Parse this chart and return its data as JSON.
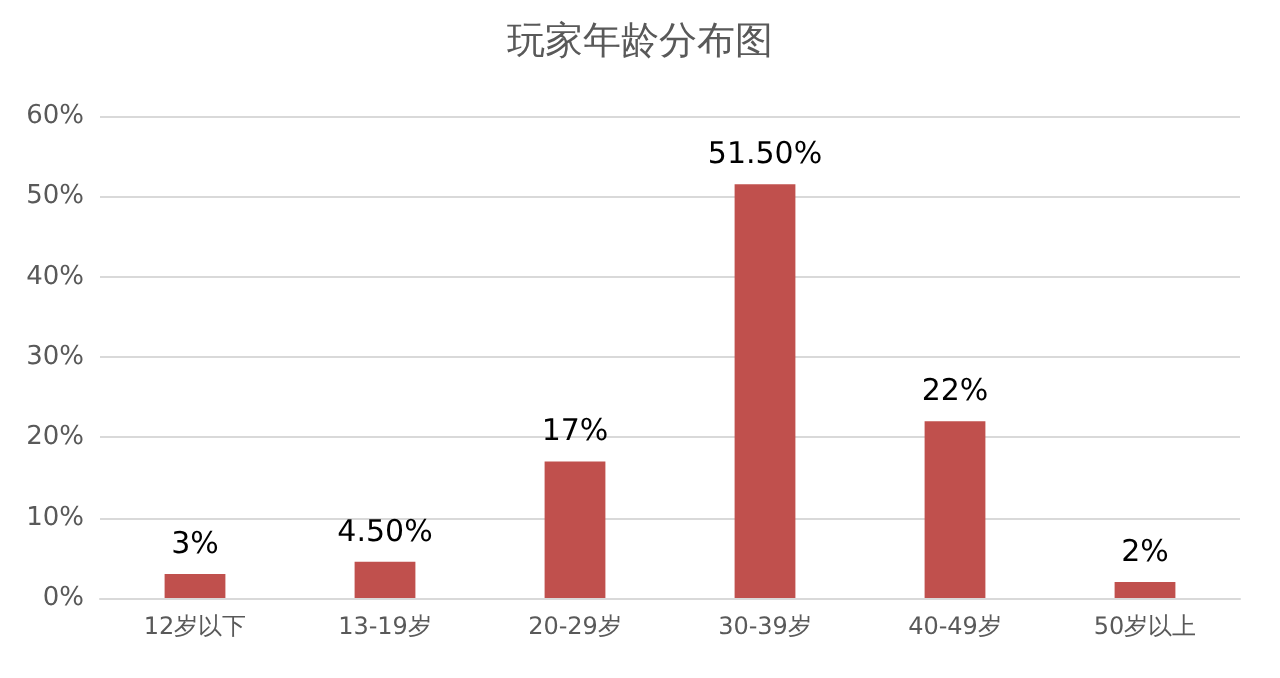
{
  "chart_data": {
    "type": "bar",
    "title": "玩家年龄分布图",
    "categories": [
      "12岁以下",
      "13-19岁",
      "20-29岁",
      "30-39岁",
      "40-49岁",
      "50岁以上"
    ],
    "values": [
      3,
      4.5,
      17,
      51.5,
      22,
      2
    ],
    "value_labels": [
      "3%",
      "4.50%",
      "17%",
      "51.50%",
      "22%",
      "2%"
    ],
    "color": "#c0504d",
    "ylim": [
      0,
      60
    ],
    "yticks": [
      {
        "value": 0,
        "label": "0%"
      },
      {
        "value": 10,
        "label": "10%"
      },
      {
        "value": 20,
        "label": "20%"
      },
      {
        "value": 30,
        "label": "30%"
      },
      {
        "value": 40,
        "label": "40%"
      },
      {
        "value": 50,
        "label": "50%"
      },
      {
        "value": 60,
        "label": "60%"
      }
    ],
    "grid": "y"
  }
}
